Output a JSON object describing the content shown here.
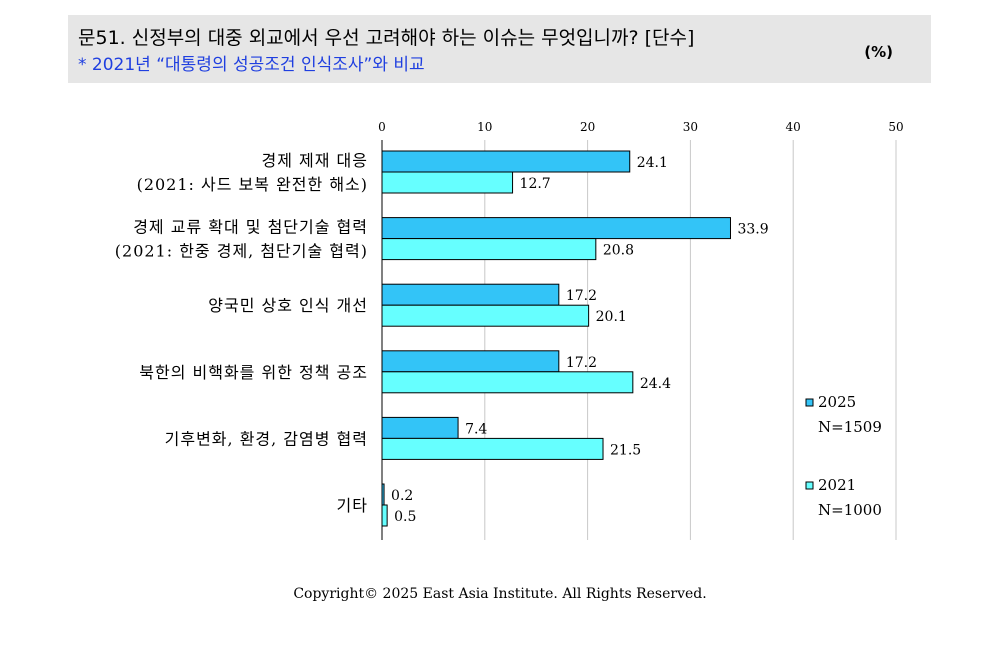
{
  "header": {
    "title": "문51. 신정부의 대중 외교에서 우선 고려해야 하는 이슈는 무엇입니까? [단수]",
    "subtitle": "* 2021년 “대통령의 성공조건 인식조사”와 비교",
    "unit": "(%)"
  },
  "footer": {
    "copyright": "Copyright© 2025 East Asia Institute. All Rights Reserved."
  },
  "colors": {
    "series_2025": "#33c4f7",
    "series_2021": "#66ffff",
    "bar_stroke": "#000000",
    "grid": "#c8c8c8"
  },
  "chart_data": {
    "type": "bar",
    "orientation": "horizontal",
    "title": "",
    "xlabel": "",
    "ylabel": "",
    "xlim": [
      0,
      50
    ],
    "ticks": [
      0,
      10,
      20,
      30,
      40,
      50
    ],
    "grid": true,
    "legend_position": "right",
    "categories": [
      [
        "경제 제재 대응",
        "(2021: 사드 보복 완전한 해소)"
      ],
      [
        "경제 교류 확대 및 첨단기술 협력",
        "(2021: 한중 경제, 첨단기술 협력)"
      ],
      [
        "양국민 상호 인식 개선"
      ],
      [
        "북한의 비핵화를 위한 정책 공조"
      ],
      [
        "기후변화, 환경, 감염병 협력"
      ],
      [
        "기타"
      ]
    ],
    "series": [
      {
        "name": "2025",
        "n_label": "N=1509",
        "values": [
          24.1,
          33.9,
          17.2,
          17.2,
          7.4,
          0.2
        ]
      },
      {
        "name": "2021",
        "n_label": "N=1000",
        "values": [
          12.7,
          20.8,
          20.1,
          24.4,
          21.5,
          0.5
        ]
      }
    ]
  }
}
